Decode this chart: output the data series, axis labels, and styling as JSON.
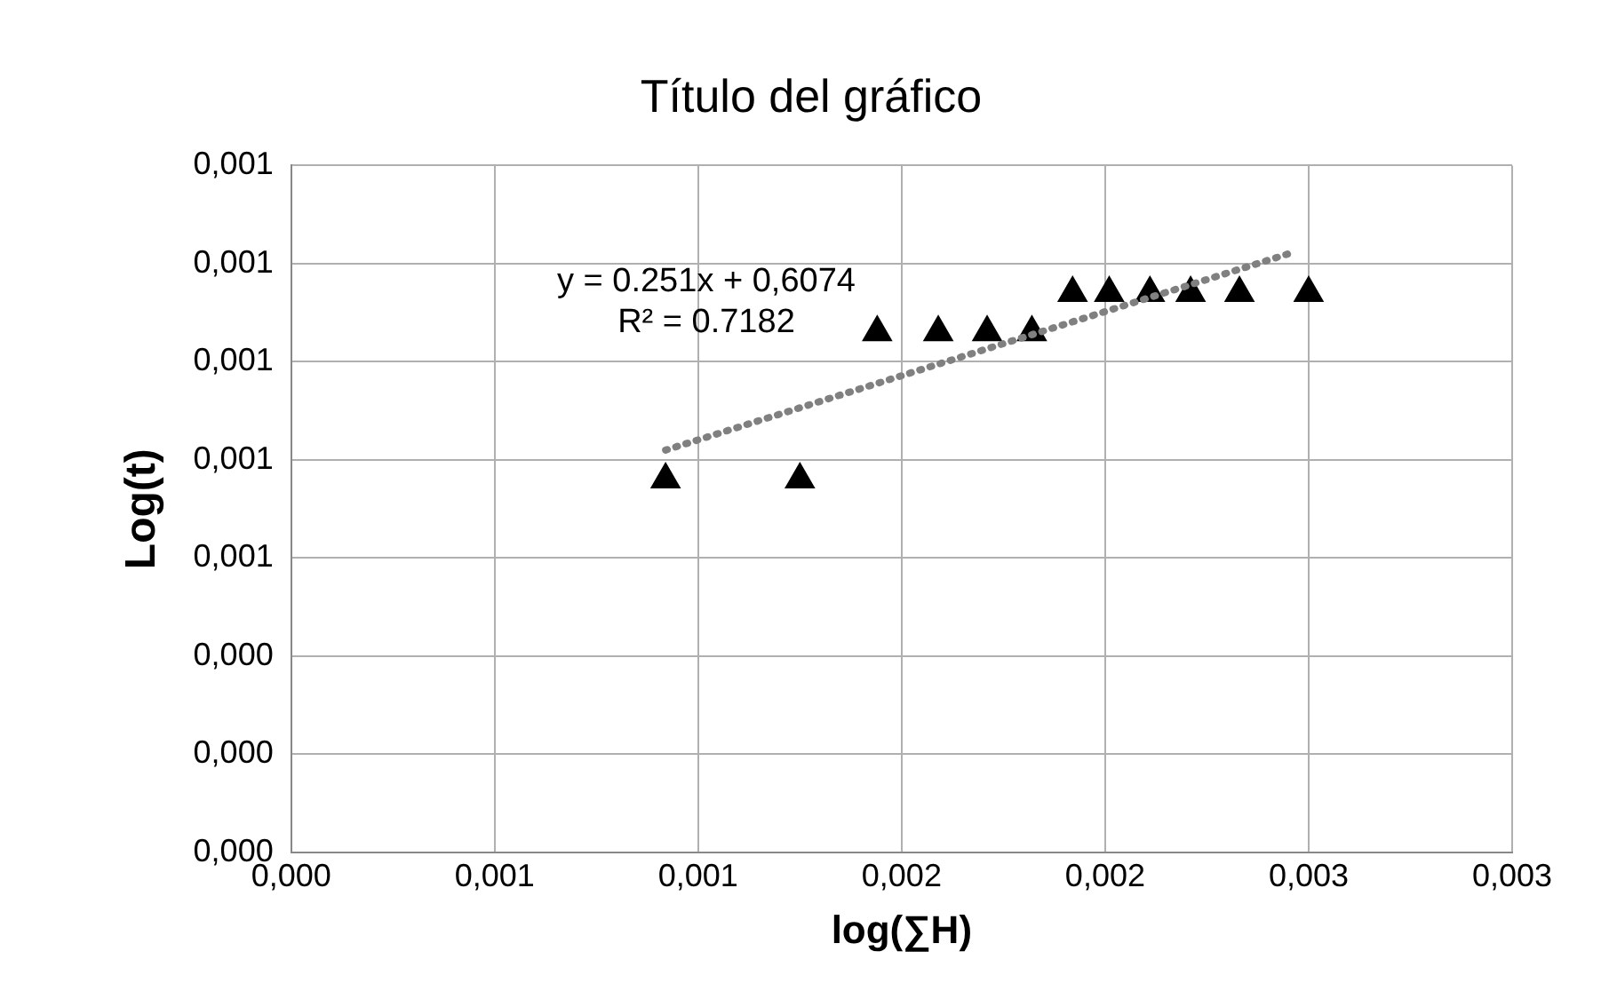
{
  "chart_data": {
    "type": "scatter",
    "title": "Título del gráfico",
    "xlabel": "log(∑H)",
    "ylabel": "Log(t)",
    "xlim": [
      0,
      0.003
    ],
    "xticks": [
      {
        "value": 0,
        "label": "0,000"
      },
      {
        "value": 0.0005,
        "label": "0,001"
      },
      {
        "value": 0.001,
        "label": "0,001"
      },
      {
        "value": 0.0015,
        "label": "0,002"
      },
      {
        "value": 0.002,
        "label": "0,002"
      },
      {
        "value": 0.0025,
        "label": "0,003"
      },
      {
        "value": 0.003,
        "label": "0,003"
      }
    ],
    "ylim": [
      0,
      0.0014
    ],
    "yticks": [
      {
        "value": 0,
        "label": "0,000"
      },
      {
        "value": 0.0002,
        "label": "0,000"
      },
      {
        "value": 0.0004,
        "label": "0,000"
      },
      {
        "value": 0.0006,
        "label": "0,001"
      },
      {
        "value": 0.0008,
        "label": "0,001"
      },
      {
        "value": 0.001,
        "label": "0,001"
      },
      {
        "value": 0.0012,
        "label": "0,001"
      },
      {
        "value": 0.0014,
        "label": "0,001"
      }
    ],
    "grid": true,
    "legend": false,
    "series": [
      {
        "marker": "triangle",
        "color": "#000000",
        "x": [
          0.00092,
          0.00125,
          0.00144,
          0.00159,
          0.00171,
          0.00182,
          0.00192,
          0.00201,
          0.00211,
          0.00221,
          0.00233,
          0.0025
        ],
        "values": [
          0.00076,
          0.00076,
          0.00106,
          0.00106,
          0.00106,
          0.00106,
          0.00114,
          0.00114,
          0.00114,
          0.00114,
          0.00114,
          0.00114
        ]
      },
      {
        "type": "line",
        "marker": "none",
        "line_style": "dotted",
        "color": "#808080",
        "x": [
          0.00092,
          0.00245
        ],
        "values": [
          0.00082,
          0.00122
        ]
      }
    ],
    "annotations": [
      "y = 0.251x + 0,6074",
      "R² = 0.7182"
    ]
  }
}
